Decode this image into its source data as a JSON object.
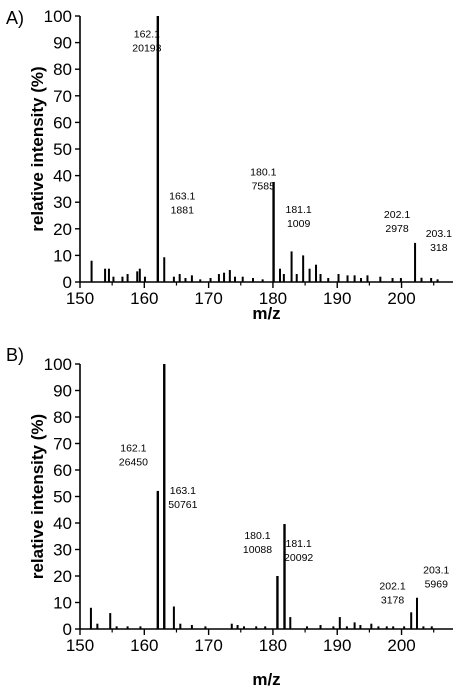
{
  "chart_data": [
    {
      "type": "bar",
      "panel_label": "A)",
      "xlabel": "m/z",
      "ylabel": "relative intensity (%)",
      "xlim": [
        150,
        208
      ],
      "ylim": [
        0,
        100
      ],
      "xticks": [
        150,
        160,
        170,
        180,
        190,
        200
      ],
      "yticks": [
        0,
        10,
        20,
        30,
        40,
        50,
        60,
        70,
        80,
        90,
        100
      ],
      "peaks": [
        {
          "x": 151.8,
          "y": 8
        },
        {
          "x": 153.9,
          "y": 5
        },
        {
          "x": 154.5,
          "y": 5
        },
        {
          "x": 155.2,
          "y": 2
        },
        {
          "x": 156.6,
          "y": 2
        },
        {
          "x": 157.4,
          "y": 3
        },
        {
          "x": 158.9,
          "y": 4
        },
        {
          "x": 159.3,
          "y": 5
        },
        {
          "x": 160.1,
          "y": 2
        },
        {
          "x": 162.1,
          "y": 100
        },
        {
          "x": 163.1,
          "y": 9.3
        },
        {
          "x": 164.6,
          "y": 2
        },
        {
          "x": 165.5,
          "y": 3
        },
        {
          "x": 166.4,
          "y": 1.5
        },
        {
          "x": 167.4,
          "y": 2.5
        },
        {
          "x": 168.7,
          "y": 1
        },
        {
          "x": 170.3,
          "y": 1.5
        },
        {
          "x": 171.6,
          "y": 3
        },
        {
          "x": 172.4,
          "y": 3.5
        },
        {
          "x": 173.3,
          "y": 4.5
        },
        {
          "x": 174.1,
          "y": 2
        },
        {
          "x": 175.3,
          "y": 2
        },
        {
          "x": 176.9,
          "y": 1.5
        },
        {
          "x": 178.4,
          "y": 1
        },
        {
          "x": 180.1,
          "y": 37.6
        },
        {
          "x": 181.1,
          "y": 5
        },
        {
          "x": 181.7,
          "y": 3
        },
        {
          "x": 182.9,
          "y": 11.5
        },
        {
          "x": 183.7,
          "y": 3
        },
        {
          "x": 184.7,
          "y": 10
        },
        {
          "x": 185.7,
          "y": 5
        },
        {
          "x": 186.7,
          "y": 6.5
        },
        {
          "x": 187.4,
          "y": 3
        },
        {
          "x": 188.6,
          "y": 1.5
        },
        {
          "x": 190.2,
          "y": 3
        },
        {
          "x": 191.6,
          "y": 2.5
        },
        {
          "x": 192.7,
          "y": 2.5
        },
        {
          "x": 193.7,
          "y": 1.5
        },
        {
          "x": 194.7,
          "y": 2.5
        },
        {
          "x": 196.7,
          "y": 2
        },
        {
          "x": 198.6,
          "y": 1.5
        },
        {
          "x": 199.9,
          "y": 1.5
        },
        {
          "x": 202.1,
          "y": 14.7
        },
        {
          "x": 203.1,
          "y": 1.6
        },
        {
          "x": 204.6,
          "y": 1.5
        },
        {
          "x": 205.6,
          "y": 1
        }
      ],
      "annotations": [
        {
          "mz": "162.1",
          "count": "20193",
          "x": 160.4,
          "y": 92
        },
        {
          "mz": "163.1",
          "count": "1881",
          "x": 165.9,
          "y": 31
        },
        {
          "mz": "180.1",
          "count": "7585",
          "x": 178.5,
          "y": 40
        },
        {
          "mz": "181.1",
          "count": "1009",
          "x": 184.0,
          "y": 26
        },
        {
          "mz": "202.1",
          "count": "2978",
          "x": 199.3,
          "y": 24
        },
        {
          "mz": "203.1",
          "count": "318",
          "x": 205.8,
          "y": 17
        }
      ]
    },
    {
      "type": "bar",
      "panel_label": "B)",
      "xlabel": "m/z",
      "ylabel": "relative intensity (%)",
      "xlim": [
        150,
        208
      ],
      "ylim": [
        0,
        100
      ],
      "xticks": [
        150,
        160,
        170,
        180,
        190,
        200
      ],
      "yticks": [
        0,
        10,
        20,
        30,
        40,
        50,
        60,
        70,
        80,
        90,
        100
      ],
      "peaks": [
        {
          "x": 151.7,
          "y": 8
        },
        {
          "x": 152.7,
          "y": 2
        },
        {
          "x": 154.7,
          "y": 6
        },
        {
          "x": 155.7,
          "y": 1
        },
        {
          "x": 157.4,
          "y": 1
        },
        {
          "x": 159.4,
          "y": 1
        },
        {
          "x": 162.1,
          "y": 52.1
        },
        {
          "x": 163.1,
          "y": 100
        },
        {
          "x": 164.6,
          "y": 8.5
        },
        {
          "x": 165.6,
          "y": 2
        },
        {
          "x": 167.4,
          "y": 1.5
        },
        {
          "x": 169.5,
          "y": 1
        },
        {
          "x": 173.6,
          "y": 2
        },
        {
          "x": 174.5,
          "y": 1.5
        },
        {
          "x": 175.5,
          "y": 1
        },
        {
          "x": 177.4,
          "y": 1
        },
        {
          "x": 178.8,
          "y": 1
        },
        {
          "x": 180.7,
          "y": 20
        },
        {
          "x": 181.8,
          "y": 39.6
        },
        {
          "x": 182.7,
          "y": 4.5
        },
        {
          "x": 185.3,
          "y": 1
        },
        {
          "x": 187.4,
          "y": 1.5
        },
        {
          "x": 189.4,
          "y": 1
        },
        {
          "x": 190.4,
          "y": 4.5
        },
        {
          "x": 191.5,
          "y": 1
        },
        {
          "x": 192.7,
          "y": 2.5
        },
        {
          "x": 193.6,
          "y": 1.5
        },
        {
          "x": 195.3,
          "y": 2
        },
        {
          "x": 196.4,
          "y": 1
        },
        {
          "x": 197.7,
          "y": 1
        },
        {
          "x": 198.7,
          "y": 1
        },
        {
          "x": 200.4,
          "y": 1
        },
        {
          "x": 201.5,
          "y": 6.3
        },
        {
          "x": 202.4,
          "y": 11.8
        },
        {
          "x": 203.4,
          "y": 1
        },
        {
          "x": 204.7,
          "y": 1
        }
      ],
      "annotations": [
        {
          "mz": "162.1",
          "count": "26450",
          "x": 158.3,
          "y": 67
        },
        {
          "mz": "163.1",
          "count": "50761",
          "x": 166.0,
          "y": 51
        },
        {
          "mz": "180.1",
          "count": "10088",
          "x": 177.6,
          "y": 34
        },
        {
          "mz": "181.1",
          "count": "20092",
          "x": 184.0,
          "y": 31
        },
        {
          "mz": "202.1",
          "count": "3178",
          "x": 198.6,
          "y": 15
        },
        {
          "mz": "203.1",
          "count": "5969",
          "x": 205.4,
          "y": 21
        }
      ]
    }
  ]
}
